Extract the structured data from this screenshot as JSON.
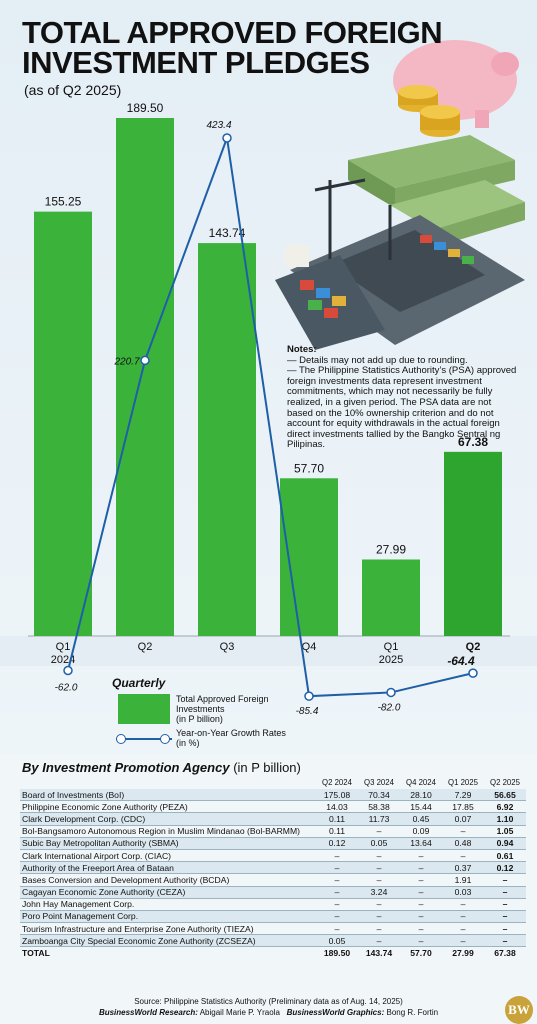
{
  "title_line1": "TOTAL APPROVED FOREIGN",
  "title_line2": "INVESTMENT PLEDGES",
  "subtitle": "(as of Q2 2025)",
  "chart_data": {
    "type": "bar",
    "categories": [
      "Q1 2024",
      "Q2",
      "Q3",
      "Q4",
      "Q1 2025",
      "Q2"
    ],
    "tick_labels": [
      {
        "line1": "Q1",
        "line2": "2024"
      },
      {
        "line1": "Q2",
        "line2": ""
      },
      {
        "line1": "Q3",
        "line2": ""
      },
      {
        "line1": "Q4",
        "line2": ""
      },
      {
        "line1": "Q1",
        "line2": "2025"
      },
      {
        "line1": "Q2",
        "line2": ""
      }
    ],
    "series": [
      {
        "name": "Total Approved Foreign Investments",
        "unit": "in P billion",
        "type": "bar",
        "values": [
          155.25,
          189.5,
          143.74,
          57.7,
          27.99,
          67.38
        ],
        "labels": [
          "155.25",
          "189.50",
          "143.74",
          "57.70",
          "27.99",
          "67.38"
        ]
      },
      {
        "name": "Year-on-Year Growth Rates",
        "unit": "in %",
        "type": "line",
        "values": [
          -62.0,
          220.7,
          423.4,
          -85.4,
          -82.0,
          -64.4
        ],
        "labels": [
          "-62.0",
          "220.7",
          "423.4",
          "-85.4",
          "-82.0",
          "-64.4"
        ]
      }
    ],
    "colors": {
      "bar": "#3bb33b",
      "line": "#1e5fa8",
      "last_bar": "#2ea52e"
    }
  },
  "legend": {
    "title": "Quarterly",
    "bar_label": "Total Approved Foreign Investments",
    "bar_unit": "(in P billion)",
    "line_label": "Year-on-Year Growth Rates",
    "line_unit": "(in %)"
  },
  "notes": {
    "title": "Notes:",
    "line1": "— Details may not add up due to rounding.",
    "line2": "— The Philippine Statistics Authority’s (PSA) approved foreign investments data represent investment commitments, which may not necessarily be fully realized, in a given period. The PSA data are not based on the 10% ownership criterion and do not account for equity withdrawals in the actual foreign direct investments tallied by the Bangko Sentral ng Pilipinas."
  },
  "table": {
    "title": "By Investment Promotion Agency",
    "unit": "(in P billion)",
    "headers": [
      "Q2 2024",
      "Q3 2024",
      "Q4 2024",
      "Q1 2025",
      "Q2 2025"
    ],
    "rows": [
      {
        "agency": "Board of Investments (BoI)",
        "values": [
          "175.08",
          "70.34",
          "28.10",
          "7.29",
          "56.65"
        ]
      },
      {
        "agency": "Philippine Economic Zone Authority (PEZA)",
        "values": [
          "14.03",
          "58.38",
          "15.44",
          "17.85",
          "6.92"
        ]
      },
      {
        "agency": "Clark Development Corp. (CDC)",
        "values": [
          "0.11",
          "11.73",
          "0.45",
          "0.07",
          "1.10"
        ]
      },
      {
        "agency": "Bol-Bangsamoro Autonomous Region in Muslim Mindanao (Bol-BARMM)",
        "values": [
          "0.11",
          "–",
          "0.09",
          "–",
          "1.05"
        ]
      },
      {
        "agency": "Subic Bay Metropolitan Authority (SBMA)",
        "values": [
          "0.12",
          "0.05",
          "13.64",
          "0.48",
          "0.94"
        ]
      },
      {
        "agency": "Clark International Airport Corp. (CIAC)",
        "values": [
          "–",
          "–",
          "–",
          "–",
          "0.61"
        ]
      },
      {
        "agency": "Authority of the Freeport Area of Bataan",
        "values": [
          "–",
          "–",
          "–",
          "0.37",
          "0.12"
        ]
      },
      {
        "agency": "Bases Conversion and Development Authority (BCDA)",
        "values": [
          "–",
          "–",
          "–",
          "1.91",
          "–"
        ]
      },
      {
        "agency": "Cagayan Economic Zone Authority (CEZA)",
        "values": [
          "–",
          "3.24",
          "–",
          "0.03",
          "–"
        ]
      },
      {
        "agency": "John Hay Management Corp.",
        "values": [
          "–",
          "–",
          "–",
          "–",
          "–"
        ]
      },
      {
        "agency": "Poro Point Management Corp.",
        "values": [
          "–",
          "–",
          "–",
          "–",
          "–"
        ]
      },
      {
        "agency": "Tourism Infrastructure and Enterprise Zone Authority (TIEZA)",
        "values": [
          "–",
          "–",
          "–",
          "–",
          "–"
        ]
      },
      {
        "agency": "Zamboanga City Special Economic Zone Authority (ZCSEZA)",
        "values": [
          "0.05",
          "–",
          "–",
          "–",
          "–"
        ]
      }
    ],
    "total": {
      "agency": "TOTAL",
      "values": [
        "189.50",
        "143.74",
        "57.70",
        "27.99",
        "67.38"
      ]
    }
  },
  "source_label": "Source:",
  "source": "Philippine Statistics Authority (Preliminary data as of Aug. 14, 2025)",
  "credit_research_label": "BusinessWorld Research:",
  "credit_research": "Abigail Marie P. Yraola",
  "credit_graphics_label": "BusinessWorld Graphics:",
  "credit_graphics": "Bong R. Fortin",
  "logo_text": "BW"
}
